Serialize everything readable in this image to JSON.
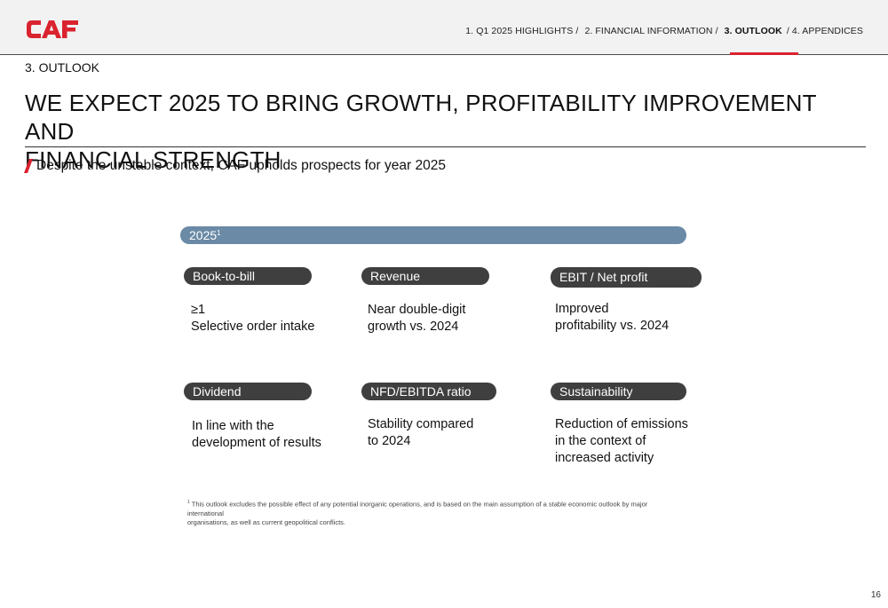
{
  "header": {
    "logo_text": "CAF",
    "brand_color": "#d9232e",
    "nav": [
      {
        "label": "1. Q1 2025 HIGHLIGHTS /",
        "active": false
      },
      {
        "label": "2. FINANCIAL INFORMATION /",
        "active": false
      },
      {
        "label": "3. OUTLOOK",
        "active": true
      },
      {
        "label": "/ 4. APPENDICES",
        "active": false
      }
    ]
  },
  "section_label": "3. OUTLOOK",
  "title_line1": "WE EXPECT 2025 TO BRING GROWTH, PROFITABILITY IMPROVEMENT AND",
  "title_line2": "FINANCIAL STRENGTH",
  "subtitle": "Despite the unstable context, CAF upholds prospects for year 2025",
  "year_bar": {
    "label": "2025",
    "footnote_mark": "1",
    "color": "#6a8aa6"
  },
  "pill_color": "#3f3f3f",
  "items": [
    {
      "title": "Book-to-bill",
      "lines": [
        "≥1",
        "Selective order intake"
      ]
    },
    {
      "title": "Revenue",
      "lines": [
        "Near double-digit",
        "growth vs. 2024"
      ]
    },
    {
      "title": "EBIT / Net profit",
      "lines": [
        "Improved",
        "profitability vs. 2024"
      ]
    },
    {
      "title": "Dividend",
      "lines": [
        "In line with the",
        "development of results"
      ]
    },
    {
      "title": "NFD/EBITDA ratio",
      "lines": [
        "Stability compared",
        "to 2024"
      ]
    },
    {
      "title": "Sustainability",
      "lines": [
        "Reduction of emissions",
        "in the context of",
        "increased activity"
      ]
    }
  ],
  "footnote": {
    "mark": "1",
    "line1": "This outlook excludes the possible effect of any potential inorganic operations, and is based on the main assumption of a stable economic outlook by major international",
    "line2": "organisations, as well as current geopolitical conflicts."
  },
  "page_number": "16"
}
